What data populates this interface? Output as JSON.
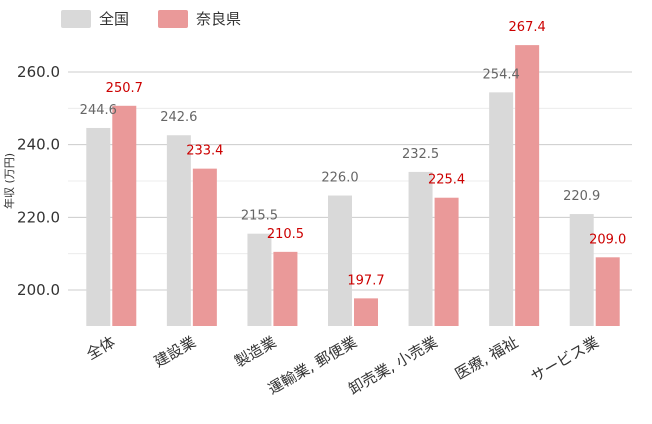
{
  "chart_data": {
    "type": "bar",
    "title": "",
    "xlabel": "",
    "ylabel": "年収 (万円)",
    "ylim": [
      190,
      270
    ],
    "yticks": [
      200.0,
      220.0,
      240.0,
      260.0
    ],
    "grid": true,
    "legend_position": "top-left",
    "categories": [
      "全体",
      "建設業",
      "製造業",
      "運輸業, 郵便業",
      "卸売業, 小売業",
      "医療, 福祉",
      "サービス業"
    ],
    "series": [
      {
        "name": "全国",
        "color": "#d9d9d9",
        "values": [
          244.6,
          242.6,
          215.5,
          226.0,
          232.5,
          254.4,
          220.9
        ]
      },
      {
        "name": "奈良県",
        "color": "#ea9999",
        "values": [
          250.7,
          233.4,
          210.5,
          197.7,
          225.4,
          267.4,
          209.0
        ]
      }
    ],
    "label_colors": {
      "national": "#666666",
      "nara": "#cc0000"
    }
  }
}
